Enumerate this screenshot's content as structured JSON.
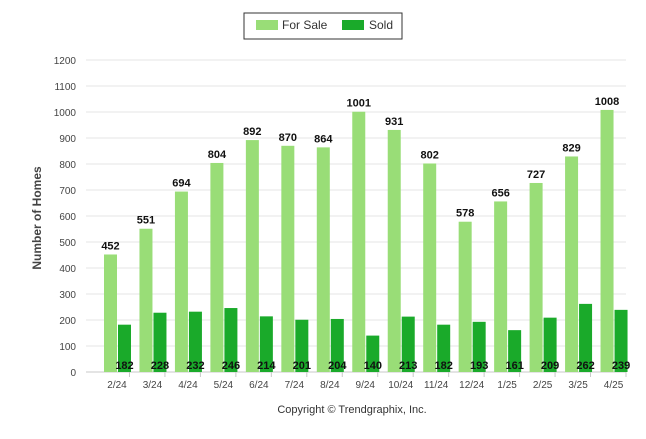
{
  "chart_data": {
    "type": "bar",
    "categories": [
      "2/24",
      "3/24",
      "4/24",
      "5/24",
      "6/24",
      "7/24",
      "8/24",
      "9/24",
      "10/24",
      "11/24",
      "12/24",
      "1/25",
      "2/25",
      "3/25",
      "4/25"
    ],
    "series": [
      {
        "name": "For Sale",
        "color": "#99dd77",
        "values": [
          452,
          551,
          694,
          804,
          892,
          870,
          864,
          1001,
          931,
          802,
          578,
          656,
          727,
          829,
          1008
        ]
      },
      {
        "name": "Sold",
        "color": "#1aaa2a",
        "values": [
          182,
          228,
          232,
          246,
          214,
          201,
          204,
          140,
          213,
          182,
          193,
          161,
          209,
          262,
          239
        ]
      }
    ],
    "title": "",
    "xlabel": "",
    "ylabel": "Number of Homes",
    "ylim": [
      0,
      1200
    ],
    "yticks": [
      0,
      100,
      200,
      300,
      400,
      500,
      600,
      700,
      800,
      900,
      1000,
      1100,
      1200
    ],
    "grid": true,
    "legend_position": "top-center"
  },
  "footer": {
    "copyright": "Copyright © Trendgraphix, Inc."
  }
}
